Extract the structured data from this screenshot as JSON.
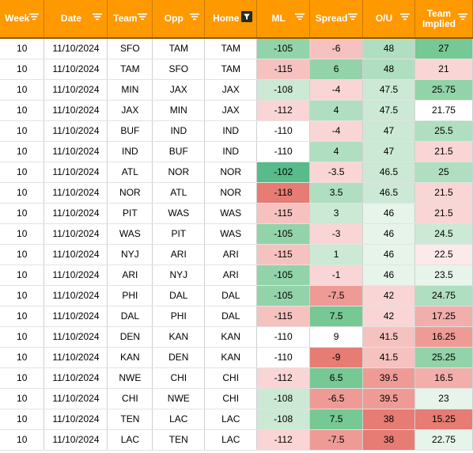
{
  "columns": [
    {
      "key": "week",
      "label": "Week",
      "filter": "normal"
    },
    {
      "key": "date",
      "label": "Date",
      "filter": "normal"
    },
    {
      "key": "team",
      "label": "Team",
      "filter": "normal"
    },
    {
      "key": "opp",
      "label": "Opp",
      "filter": "normal"
    },
    {
      "key": "home",
      "label": "Home",
      "filter": "active"
    },
    {
      "key": "ml",
      "label": "ML",
      "filter": "normal"
    },
    {
      "key": "spread",
      "label": "Spread",
      "filter": "normal"
    },
    {
      "key": "ou",
      "label": "O/U",
      "filter": "normal"
    },
    {
      "key": "implied",
      "label": "Team Implied",
      "filter": "normal"
    }
  ],
  "colors": {
    "header_bg": "#ff9900",
    "header_text": "#ffffff",
    "neutral": "#ffffff",
    "green_scale": [
      "#e6f4ea",
      "#cbe9d4",
      "#b0dec0",
      "#93d3a9",
      "#76c894",
      "#57bb8a"
    ],
    "red_scale": [
      "#fceaea",
      "#f9d6d5",
      "#f5c2c0",
      "#f2aeab",
      "#ee9b96",
      "#ea8780",
      "#e67c73"
    ]
  },
  "rows": [
    {
      "week": "10",
      "date": "11/10/2024",
      "team": "SFO",
      "opp": "TAM",
      "home": "TAM",
      "ml": "-105",
      "spread": "-6",
      "ou": "48",
      "implied": "27"
    },
    {
      "week": "10",
      "date": "11/10/2024",
      "team": "TAM",
      "opp": "SFO",
      "home": "TAM",
      "ml": "-115",
      "spread": "6",
      "ou": "48",
      "implied": "21"
    },
    {
      "week": "10",
      "date": "11/10/2024",
      "team": "MIN",
      "opp": "JAX",
      "home": "JAX",
      "ml": "-108",
      "spread": "-4",
      "ou": "47.5",
      "implied": "25.75"
    },
    {
      "week": "10",
      "date": "11/10/2024",
      "team": "JAX",
      "opp": "MIN",
      "home": "JAX",
      "ml": "-112",
      "spread": "4",
      "ou": "47.5",
      "implied": "21.75"
    },
    {
      "week": "10",
      "date": "11/10/2024",
      "team": "BUF",
      "opp": "IND",
      "home": "IND",
      "ml": "-110",
      "spread": "-4",
      "ou": "47",
      "implied": "25.5"
    },
    {
      "week": "10",
      "date": "11/10/2024",
      "team": "IND",
      "opp": "BUF",
      "home": "IND",
      "ml": "-110",
      "spread": "4",
      "ou": "47",
      "implied": "21.5"
    },
    {
      "week": "10",
      "date": "11/10/2024",
      "team": "ATL",
      "opp": "NOR",
      "home": "NOR",
      "ml": "-102",
      "spread": "-3.5",
      "ou": "46.5",
      "implied": "25"
    },
    {
      "week": "10",
      "date": "11/10/2024",
      "team": "NOR",
      "opp": "ATL",
      "home": "NOR",
      "ml": "-118",
      "spread": "3.5",
      "ou": "46.5",
      "implied": "21.5"
    },
    {
      "week": "10",
      "date": "11/10/2024",
      "team": "PIT",
      "opp": "WAS",
      "home": "WAS",
      "ml": "-115",
      "spread": "3",
      "ou": "46",
      "implied": "21.5"
    },
    {
      "week": "10",
      "date": "11/10/2024",
      "team": "WAS",
      "opp": "PIT",
      "home": "WAS",
      "ml": "-105",
      "spread": "-3",
      "ou": "46",
      "implied": "24.5"
    },
    {
      "week": "10",
      "date": "11/10/2024",
      "team": "NYJ",
      "opp": "ARI",
      "home": "ARI",
      "ml": "-115",
      "spread": "1",
      "ou": "46",
      "implied": "22.5"
    },
    {
      "week": "10",
      "date": "11/10/2024",
      "team": "ARI",
      "opp": "NYJ",
      "home": "ARI",
      "ml": "-105",
      "spread": "-1",
      "ou": "46",
      "implied": "23.5"
    },
    {
      "week": "10",
      "date": "11/10/2024",
      "team": "PHI",
      "opp": "DAL",
      "home": "DAL",
      "ml": "-105",
      "spread": "-7.5",
      "ou": "42",
      "implied": "24.75"
    },
    {
      "week": "10",
      "date": "11/10/2024",
      "team": "DAL",
      "opp": "PHI",
      "home": "DAL",
      "ml": "-115",
      "spread": "7.5",
      "ou": "42",
      "implied": "17.25"
    },
    {
      "week": "10",
      "date": "11/10/2024",
      "team": "DEN",
      "opp": "KAN",
      "home": "KAN",
      "ml": "-110",
      "spread": "9",
      "ou": "41.5",
      "implied": "16.25"
    },
    {
      "week": "10",
      "date": "11/10/2024",
      "team": "KAN",
      "opp": "DEN",
      "home": "KAN",
      "ml": "-110",
      "spread": "-9",
      "ou": "41.5",
      "implied": "25.25"
    },
    {
      "week": "10",
      "date": "11/10/2024",
      "team": "NWE",
      "opp": "CHI",
      "home": "CHI",
      "ml": "-112",
      "spread": "6.5",
      "ou": "39.5",
      "implied": "16.5"
    },
    {
      "week": "10",
      "date": "11/10/2024",
      "team": "CHI",
      "opp": "NWE",
      "home": "CHI",
      "ml": "-108",
      "spread": "-6.5",
      "ou": "39.5",
      "implied": "23"
    },
    {
      "week": "10",
      "date": "11/10/2024",
      "team": "TEN",
      "opp": "LAC",
      "home": "LAC",
      "ml": "-108",
      "spread": "7.5",
      "ou": "38",
      "implied": "15.25"
    },
    {
      "week": "10",
      "date": "11/10/2024",
      "team": "LAC",
      "opp": "TEN",
      "home": "LAC",
      "ml": "-112",
      "spread": "-7.5",
      "ou": "38",
      "implied": "22.75"
    }
  ],
  "cell_fills": {
    "ml": [
      "g3",
      "r2",
      "g1",
      "r1",
      "n",
      "n",
      "g5",
      "r6",
      "r2",
      "g3",
      "r2",
      "g3",
      "g3",
      "r2",
      "n",
      "n",
      "r1",
      "g1",
      "g1",
      "r1"
    ],
    "spread": [
      "r2",
      "g3",
      "r1",
      "g2",
      "r1",
      "g2",
      "r1",
      "g2",
      "g1",
      "r1",
      "g1",
      "r1",
      "r4",
      "g4",
      "g6",
      "r6",
      "g4",
      "r4",
      "g4",
      "r4"
    ],
    "ou": [
      "g2",
      "g2",
      "g1",
      "g1",
      "g1",
      "g1",
      "g1",
      "g1",
      "g0",
      "g0",
      "g0",
      "g0",
      "r1",
      "r1",
      "r2",
      "r2",
      "r4",
      "r4",
      "r6",
      "r6"
    ],
    "implied": [
      "g4",
      "r1",
      "g3",
      "n",
      "g2",
      "r1",
      "g2",
      "r1",
      "r1",
      "g1",
      "r0",
      "g0",
      "g2",
      "r3",
      "r4",
      "g3",
      "r3",
      "g0",
      "r6",
      "g0"
    ]
  }
}
